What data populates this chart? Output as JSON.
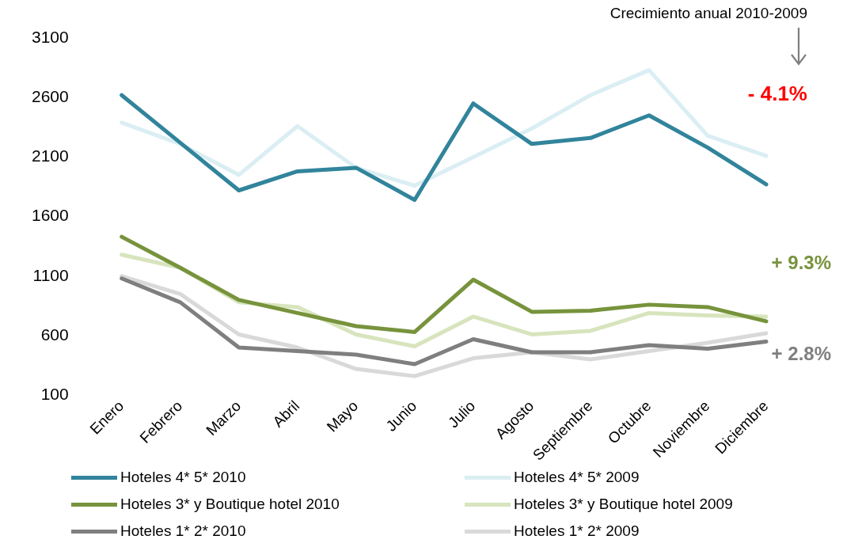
{
  "chart_data": {
    "type": "line",
    "categories": [
      "Enero",
      "Febrero",
      "Marzo",
      "Abril",
      "Mayo",
      "Junio",
      "Julio",
      "Agosto",
      "Septiembre",
      "Octubre",
      "Noviembre",
      "Diciembre"
    ],
    "series": [
      {
        "name": "Hoteles 4* 5* 2010",
        "color": "#31849b",
        "values": [
          2620,
          2220,
          1820,
          1980,
          2010,
          1740,
          2550,
          2210,
          2260,
          2450,
          2180,
          1870
        ]
      },
      {
        "name": "Hoteles 4* 5* 2009",
        "color": "#daeef3",
        "values": [
          2390,
          2210,
          1950,
          2360,
          2010,
          1860,
          2100,
          2340,
          2620,
          2830,
          2280,
          2110
        ]
      },
      {
        "name": "Hoteles 3* y Boutique hotel 2010",
        "color": "#77933c",
        "values": [
          1430,
          1170,
          900,
          790,
          680,
          630,
          1070,
          800,
          810,
          860,
          840,
          720
        ]
      },
      {
        "name": "Hoteles 3* y Boutique hotel 2009",
        "color": "#d7e4bd",
        "values": [
          1280,
          1170,
          880,
          840,
          610,
          510,
          760,
          610,
          640,
          790,
          770,
          760
        ]
      },
      {
        "name": "Hoteles 1* 2* 2010",
        "color": "#7f7f7f",
        "values": [
          1080,
          880,
          500,
          470,
          440,
          360,
          570,
          460,
          460,
          520,
          490,
          550
        ]
      },
      {
        "name": "Hoteles 1* 2* 2009",
        "color": "#d9d9d9",
        "values": [
          1100,
          950,
          610,
          500,
          320,
          260,
          410,
          460,
          400,
          470,
          540,
          620
        ]
      }
    ],
    "ylim": [
      100,
      3100
    ],
    "yticks": [
      100,
      600,
      1100,
      1600,
      2100,
      2600,
      3100
    ],
    "grid": false,
    "legend": "bottom",
    "marker": "none",
    "line_style": "solid",
    "annotations": [
      "Crecimiento anual 2010-2009",
      "- 4.1%",
      "+ 9.3%",
      "+ 2.8%"
    ]
  }
}
